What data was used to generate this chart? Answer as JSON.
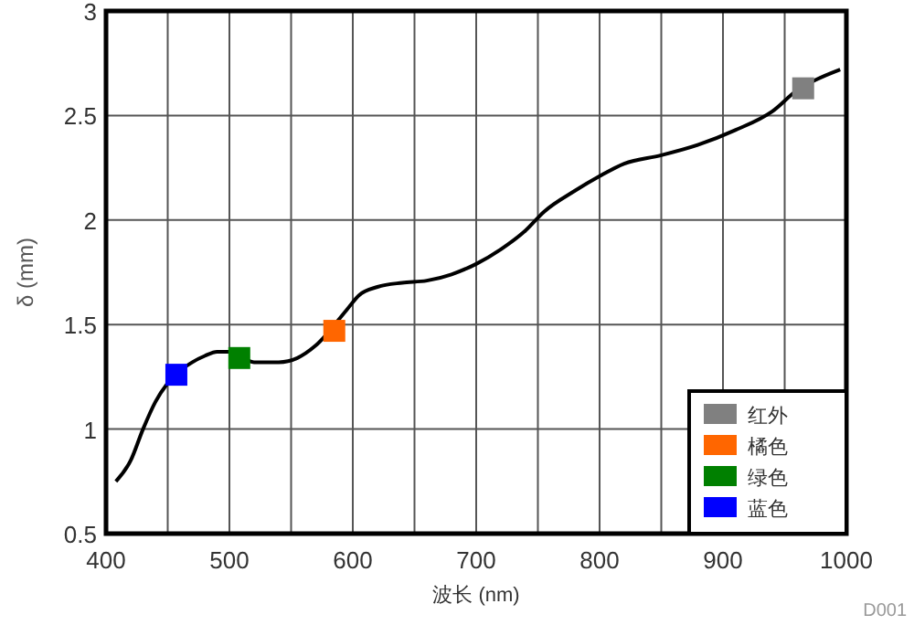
{
  "chart_data": {
    "type": "line",
    "xlabel": "波长 (nm)",
    "ylabel": "δ (mm)",
    "xlim": [
      400,
      1000
    ],
    "ylim": [
      0.5,
      3
    ],
    "xticks": [
      400,
      {
        "value": 450,
        "label": null
      },
      500,
      {
        "value": 550,
        "label": null
      },
      600,
      {
        "value": 650,
        "label": null
      },
      700,
      {
        "value": 750,
        "label": null
      },
      800,
      {
        "value": 850,
        "label": null
      },
      900,
      {
        "value": 950,
        "label": null
      },
      1000
    ],
    "yticks": [
      0.5,
      1,
      1.5,
      2,
      2.5,
      3
    ],
    "grid": true,
    "legend": "bottom right",
    "annotations": [
      "D001"
    ],
    "series": [
      {
        "color": "#000000",
        "x": [
          408,
          420,
          430,
          440,
          450,
          470,
          480,
          490,
          500,
          520,
          540,
          555,
          570,
          595,
          605,
          620,
          640,
          660,
          680,
          700,
          720,
          740,
          755,
          780,
          800,
          820,
          850,
          880,
          910,
          940,
          960,
          975,
          995
        ],
        "values": [
          0.75,
          0.85,
          1.0,
          1.13,
          1.22,
          1.32,
          1.35,
          1.37,
          1.37,
          1.32,
          1.32,
          1.34,
          1.4,
          1.57,
          1.64,
          1.68,
          1.7,
          1.71,
          1.74,
          1.79,
          1.86,
          1.95,
          2.04,
          2.14,
          2.21,
          2.27,
          2.31,
          2.36,
          2.43,
          2.52,
          2.62,
          2.67,
          2.72
        ]
      },
      {
        "type": "scatter",
        "name": "红外",
        "color": "#808080",
        "marker": "square",
        "x": [
          965
        ],
        "values": [
          2.63
        ]
      },
      {
        "type": "scatter",
        "name": "橘色",
        "color": "#ff6600",
        "marker": "square",
        "x": [
          585
        ],
        "values": [
          1.47
        ]
      },
      {
        "type": "scatter",
        "name": "绿色",
        "color": "#008000",
        "marker": "square",
        "x": [
          508
        ],
        "values": [
          1.34
        ]
      },
      {
        "type": "scatter",
        "name": "蓝色",
        "color": "#0000ff",
        "marker": "square",
        "x": [
          457
        ],
        "values": [
          1.26
        ]
      }
    ]
  }
}
